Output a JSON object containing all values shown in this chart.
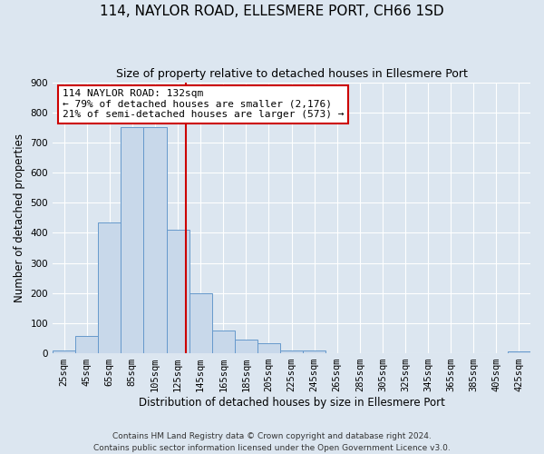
{
  "title": "114, NAYLOR ROAD, ELLESMERE PORT, CH66 1SD",
  "subtitle": "Size of property relative to detached houses in Ellesmere Port",
  "xlabel": "Distribution of detached houses by size in Ellesmere Port",
  "ylabel": "Number of detached properties",
  "bar_color": "#c8d8ea",
  "bar_edge_color": "#6699cc",
  "background_color": "#dce6f0",
  "grid_color": "white",
  "bin_edges": [
    15,
    35,
    55,
    75,
    95,
    115,
    135,
    155,
    175,
    195,
    215,
    235,
    255,
    275,
    295,
    315,
    335,
    355,
    375,
    395,
    415,
    435
  ],
  "bin_labels": [
    "25sqm",
    "45sqm",
    "65sqm",
    "85sqm",
    "105sqm",
    "125sqm",
    "145sqm",
    "165sqm",
    "185sqm",
    "205sqm",
    "225sqm",
    "245sqm",
    "265sqm",
    "285sqm",
    "305sqm",
    "325sqm",
    "345sqm",
    "365sqm",
    "385sqm",
    "405sqm",
    "425sqm"
  ],
  "values": [
    10,
    58,
    435,
    750,
    750,
    410,
    200,
    75,
    45,
    32,
    10,
    10,
    0,
    0,
    0,
    0,
    0,
    0,
    0,
    0,
    5
  ],
  "property_size": 132,
  "vline_color": "#cc0000",
  "annotation_title": "114 NAYLOR ROAD: 132sqm",
  "annotation_line1": "← 79% of detached houses are smaller (2,176)",
  "annotation_line2": "21% of semi-detached houses are larger (573) →",
  "annotation_box_color": "white",
  "annotation_border_color": "#cc0000",
  "ylim": [
    0,
    900
  ],
  "yticks": [
    0,
    100,
    200,
    300,
    400,
    500,
    600,
    700,
    800,
    900
  ],
  "footer1": "Contains HM Land Registry data © Crown copyright and database right 2024.",
  "footer2": "Contains public sector information licensed under the Open Government Licence v3.0.",
  "title_fontsize": 11,
  "subtitle_fontsize": 9,
  "label_fontsize": 8.5,
  "tick_fontsize": 7.5,
  "annotation_fontsize": 8,
  "footer_fontsize": 6.5
}
